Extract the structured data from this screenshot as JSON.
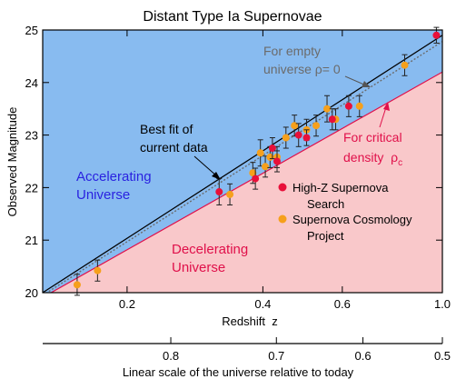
{
  "chart_data": {
    "type": "scatter",
    "title": "Distant Type Ia Supernovae",
    "xlabel": "Redshift  z",
    "ylabel": "Observed Magnitude",
    "x_scale": "log",
    "xlim": [
      0.13,
      1.0
    ],
    "ylim": [
      20,
      25
    ],
    "x_ticks": [
      0.2,
      0.4,
      0.6,
      1.0
    ],
    "x_tick_labels": [
      "0.2",
      "0.4",
      "0.6",
      "1.0"
    ],
    "y_ticks": [
      20,
      21,
      22,
      23,
      24,
      25
    ],
    "y_tick_labels": [
      "20",
      "21",
      "22",
      "23",
      "24",
      "25"
    ],
    "secondary_axis": {
      "label": "Linear scale of the universe relative to today",
      "ticks": [
        0.8,
        0.7,
        0.6,
        0.5
      ],
      "tick_labels": [
        "0.8",
        "0.7",
        "0.6",
        "0.5"
      ]
    },
    "regions": {
      "accelerating": {
        "label_line1": "Accelerating",
        "label_line2": "Universe",
        "color": "#88bbf0"
      },
      "decelerating": {
        "label_line1": "Decelerating",
        "label_line2": "Universe",
        "color": "#f9c8ca"
      }
    },
    "lines": {
      "best_fit": {
        "label_line1": "Best fit of",
        "label_line2": "current data",
        "color": "#000000",
        "points": [
          [
            0.13,
            20.0
          ],
          [
            1.0,
            24.9
          ]
        ]
      },
      "empty": {
        "label_line1": "For empty",
        "label_line2": "universe ρ= 0",
        "color": "#6b6b6b",
        "points": [
          [
            0.13,
            19.95
          ],
          [
            1.0,
            24.78
          ]
        ]
      },
      "critical": {
        "label_line1": "For critical",
        "label_line2": "density  ρ",
        "label_sub": "c",
        "color": "#e0104a",
        "points": [
          [
            0.13,
            19.91
          ],
          [
            1.0,
            24.2
          ]
        ]
      }
    },
    "series": [
      {
        "name_line1": "High-Z Supernova",
        "name_line2": "Search",
        "color": "#e8103a",
        "points": [
          {
            "x": 0.32,
            "y": 21.92,
            "err": 0.25
          },
          {
            "x": 0.385,
            "y": 22.17,
            "err": 0.2
          },
          {
            "x": 0.42,
            "y": 22.75,
            "err": 0.2
          },
          {
            "x": 0.43,
            "y": 22.5,
            "err": 0.2
          },
          {
            "x": 0.48,
            "y": 23.0,
            "err": 0.22
          },
          {
            "x": 0.5,
            "y": 22.95,
            "err": 0.15
          },
          {
            "x": 0.57,
            "y": 23.3,
            "err": 0.2
          },
          {
            "x": 0.62,
            "y": 23.55,
            "err": 0.2
          },
          {
            "x": 0.97,
            "y": 24.9,
            "err": 0.15
          }
        ]
      },
      {
        "name_line1": "Supernova Cosmology",
        "name_line2": "Project",
        "color": "#f6a01c",
        "points": [
          {
            "x": 0.155,
            "y": 20.15,
            "err": 0.2
          },
          {
            "x": 0.172,
            "y": 20.42,
            "err": 0.2
          },
          {
            "x": 0.338,
            "y": 21.87,
            "err": 0.2
          },
          {
            "x": 0.38,
            "y": 22.28,
            "err": 0.2
          },
          {
            "x": 0.395,
            "y": 22.66,
            "err": 0.25
          },
          {
            "x": 0.405,
            "y": 22.4,
            "err": 0.2
          },
          {
            "x": 0.415,
            "y": 22.58,
            "err": 0.2
          },
          {
            "x": 0.43,
            "y": 22.58,
            "err": 0.2
          },
          {
            "x": 0.45,
            "y": 22.95,
            "err": 0.2
          },
          {
            "x": 0.47,
            "y": 23.18,
            "err": 0.2
          },
          {
            "x": 0.5,
            "y": 23.1,
            "err": 0.2
          },
          {
            "x": 0.525,
            "y": 23.18,
            "err": 0.2
          },
          {
            "x": 0.555,
            "y": 23.5,
            "err": 0.25
          },
          {
            "x": 0.58,
            "y": 23.3,
            "err": 0.2
          },
          {
            "x": 0.655,
            "y": 23.55,
            "err": 0.2
          },
          {
            "x": 0.825,
            "y": 24.33,
            "err": 0.2
          }
        ]
      }
    ]
  }
}
